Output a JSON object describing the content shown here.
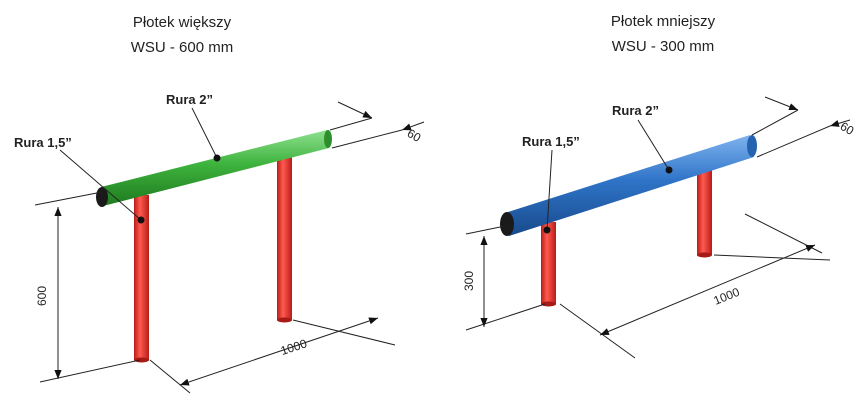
{
  "left": {
    "title": "Płotek większy",
    "subtitle": "WSU - 600 mm",
    "top_pipe_label": "Rura 2”",
    "leg_pipe_label": "Rura 1,5”",
    "dim_height": "600",
    "dim_length": "1000",
    "dim_diameter": "60",
    "top_pipe_color": "#3db33d",
    "leg_color": "#e8302a"
  },
  "right": {
    "title": "Płotek mniejszy",
    "subtitle": "WSU - 300 mm",
    "top_pipe_label": "Rura 2”",
    "leg_pipe_label": "Rura 1,5”",
    "dim_height": "300",
    "dim_length": "1000",
    "dim_diameter": "60",
    "top_pipe_color": "#2f74c8",
    "leg_color": "#e8302a"
  }
}
